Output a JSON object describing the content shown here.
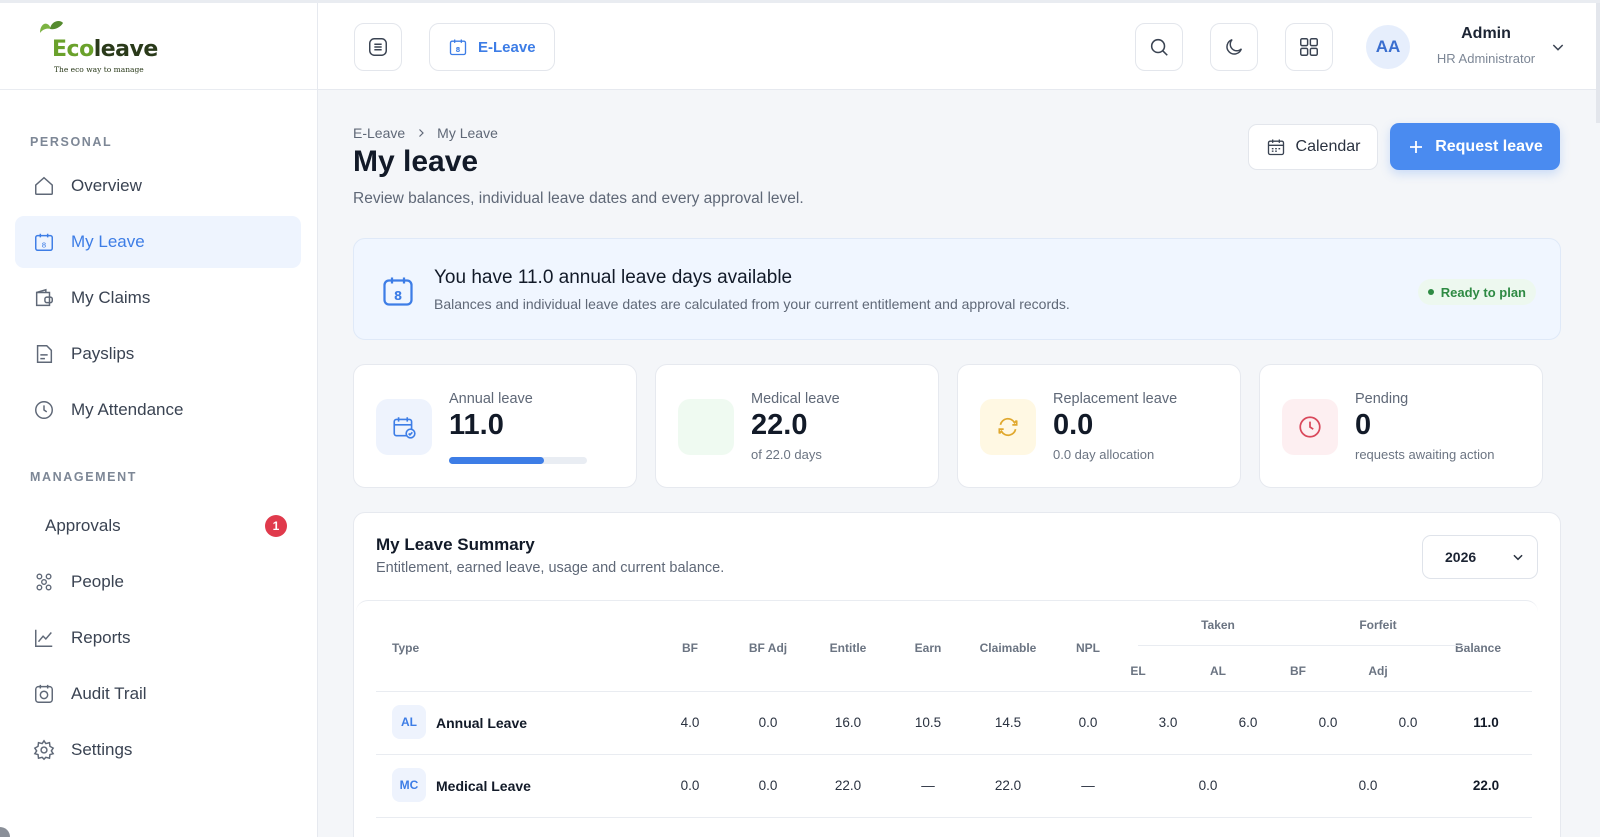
{
  "brand": {
    "logo_text_eco": "Eco",
    "logo_text_leave": "leave",
    "tagline": "The eco way to manage"
  },
  "sidebar": {
    "section_personal": "PERSONAL",
    "section_management": "MANAGEMENT",
    "items": [
      {
        "label": "Overview",
        "icon": "home-icon"
      },
      {
        "label": "My Leave",
        "icon": "calendar-icon",
        "active": true
      },
      {
        "label": "My Claims",
        "icon": "wallet-icon"
      },
      {
        "label": "Payslips",
        "icon": "document-icon"
      },
      {
        "label": "My Attendance",
        "icon": "clock-icon"
      }
    ],
    "management_items": [
      {
        "label": "Approvals",
        "badge": "1"
      },
      {
        "label": "People",
        "icon": "people-icon"
      },
      {
        "label": "Reports",
        "icon": "chart-icon"
      },
      {
        "label": "Audit Trail",
        "icon": "audit-icon"
      },
      {
        "label": "Settings",
        "icon": "gear-icon"
      }
    ]
  },
  "header": {
    "module_label": "E-Leave",
    "user_initials": "AA",
    "user_name": "Admin",
    "user_role": "HR Administrator"
  },
  "page": {
    "breadcrumb": [
      "E-Leave",
      "My Leave"
    ],
    "title": "My leave",
    "subtitle": "Review balances, individual leave dates and every approval level.",
    "calendar_button": "Calendar",
    "request_button": "Request leave"
  },
  "banner": {
    "title": "You have 11.0 annual leave days available",
    "subtitle": "Balances and individual leave dates are calculated from your current entitlement and approval records.",
    "status": "Ready to plan"
  },
  "stats": [
    {
      "label": "Annual leave",
      "value": "11.0",
      "progress": 0.69
    },
    {
      "label": "Medical leave",
      "value": "22.0",
      "note": "of 22.0 days"
    },
    {
      "label": "Replacement leave",
      "value": "0.0",
      "note": "0.0 day allocation"
    },
    {
      "label": "Pending",
      "value": "0",
      "note": "requests awaiting action"
    }
  ],
  "summary": {
    "title": "My Leave Summary",
    "subtitle": "Entitlement, earned leave, usage and current balance.",
    "year": "2026",
    "headers": {
      "type": "Type",
      "bf": "BF",
      "bf_adj": "BF Adj",
      "entitle": "Entitle",
      "earn": "Earn",
      "claimable": "Claimable",
      "npl": "NPL",
      "taken": "Taken",
      "forfeit": "Forfeit",
      "balance": "Balance",
      "taken_el": "EL",
      "taken_al": "AL",
      "forfeit_bf": "BF",
      "forfeit_adj": "Adj"
    },
    "rows": [
      {
        "code": "AL",
        "name": "Annual Leave",
        "bf": "4.0",
        "bf_adj": "0.0",
        "entitle": "16.0",
        "earn": "10.5",
        "claimable": "14.5",
        "npl": "0.0",
        "taken_el": "3.0",
        "taken_al": "6.0",
        "forfeit_bf": "0.0",
        "forfeit_adj": "0.0",
        "balance": "11.0"
      },
      {
        "code": "MC",
        "name": "Medical Leave",
        "bf": "0.0",
        "bf_adj": "0.0",
        "entitle": "22.0",
        "earn": "—",
        "claimable": "22.0",
        "npl": "—",
        "taken": "0.0",
        "forfeit": "0.0",
        "balance": "22.0"
      }
    ]
  }
}
